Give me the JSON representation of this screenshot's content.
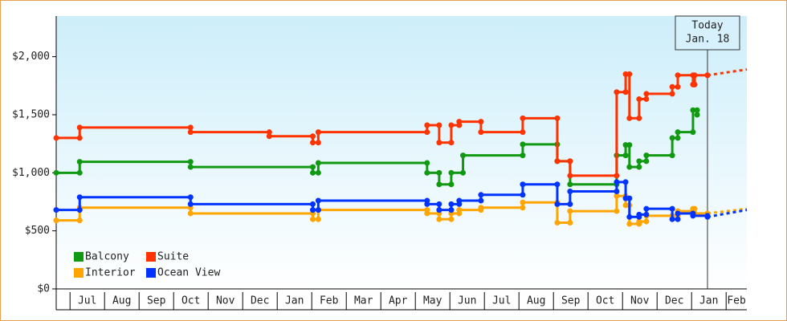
{
  "chart_data": {
    "type": "step-line",
    "xlim": [
      -0.4,
      19.6
    ],
    "xticks": [
      {
        "value": 0.5,
        "label": "Jul"
      },
      {
        "value": 1.5,
        "label": "Aug"
      },
      {
        "value": 2.5,
        "label": "Sep"
      },
      {
        "value": 3.5,
        "label": "Oct"
      },
      {
        "value": 4.5,
        "label": "Nov"
      },
      {
        "value": 5.5,
        "label": "Dec"
      },
      {
        "value": 6.5,
        "label": "Jan"
      },
      {
        "value": 7.5,
        "label": "Feb"
      },
      {
        "value": 8.5,
        "label": "Mar"
      },
      {
        "value": 9.5,
        "label": "Apr"
      },
      {
        "value": 10.5,
        "label": "May"
      },
      {
        "value": 11.5,
        "label": "Jun"
      },
      {
        "value": 12.5,
        "label": "Jul"
      },
      {
        "value": 13.5,
        "label": "Aug"
      },
      {
        "value": 14.5,
        "label": "Sep"
      },
      {
        "value": 15.5,
        "label": "Oct"
      },
      {
        "value": 16.5,
        "label": "Nov"
      },
      {
        "value": 17.5,
        "label": "Dec"
      },
      {
        "value": 18.5,
        "label": "Jan"
      },
      {
        "value": 19.5,
        "label": "Feb"
      }
    ],
    "ylim": [
      0,
      2350
    ],
    "yticks": [
      {
        "value": 0,
        "label": "$0"
      },
      {
        "value": 500,
        "label": "$500"
      },
      {
        "value": 1000,
        "label": "$1,000"
      },
      {
        "value": 1500,
        "label": "$1,500"
      },
      {
        "value": 2000,
        "label": "$2,000"
      }
    ],
    "annotation": {
      "x": 18.46,
      "lines": [
        "Today",
        "Jan. 18"
      ]
    },
    "forecast_x": [
      18.46,
      19.6
    ],
    "series": [
      {
        "name": "Balcony",
        "color": "#119911",
        "x": [
          -0.4,
          0.28,
          3.49,
          7.03,
          7.19,
          10.34,
          10.69,
          11.04,
          11.38,
          13.11,
          14.11,
          14.48,
          15.83,
          16.09,
          16.2,
          16.48,
          16.69,
          17.44,
          17.6,
          18.04,
          18.16
        ],
        "values": [
          1000,
          1095,
          1050,
          1000,
          1085,
          1000,
          900,
          1000,
          1150,
          1245,
          1100,
          900,
          1150,
          1240,
          1050,
          1100,
          1150,
          1300,
          1350,
          1540,
          1500
        ]
      },
      {
        "name": "Suite",
        "color": "#ff3300",
        "x": [
          -0.4,
          0.28,
          3.49,
          5.77,
          7.03,
          7.19,
          10.34,
          10.69,
          11.04,
          11.27,
          11.9,
          13.11,
          14.11,
          14.48,
          15.83,
          16.09,
          16.2,
          16.48,
          16.69,
          17.44,
          17.6,
          18.04,
          18.09,
          18.46
        ],
        "values": [
          1300,
          1390,
          1350,
          1315,
          1260,
          1350,
          1410,
          1260,
          1410,
          1440,
          1350,
          1470,
          1100,
          975,
          1695,
          1850,
          1470,
          1635,
          1680,
          1740,
          1840,
          1760,
          1840,
          1840
        ],
        "forecast": [
          1840,
          1890
        ]
      },
      {
        "name": "Interior",
        "color": "#ffa500",
        "x": [
          -0.4,
          0.28,
          3.49,
          7.03,
          7.19,
          10.34,
          10.69,
          11.04,
          11.27,
          11.9,
          13.11,
          14.11,
          14.48,
          15.83,
          16.09,
          16.2,
          16.48,
          16.69,
          17.44,
          17.6,
          18.04,
          18.09,
          18.46
        ],
        "values": [
          590,
          700,
          650,
          600,
          680,
          650,
          600,
          650,
          680,
          700,
          745,
          570,
          670,
          800,
          720,
          560,
          580,
          630,
          630,
          670,
          690,
          650,
          650
        ],
        "forecast": [
          650,
          690
        ]
      },
      {
        "name": "Ocean View",
        "color": "#0033ff",
        "x": [
          -0.4,
          0.28,
          3.49,
          7.03,
          7.19,
          10.34,
          10.69,
          11.04,
          11.27,
          11.9,
          13.11,
          14.11,
          14.48,
          15.83,
          16.09,
          16.2,
          16.48,
          16.69,
          17.44,
          17.6,
          18.04,
          18.46
        ],
        "values": [
          680,
          790,
          730,
          680,
          760,
          730,
          680,
          730,
          760,
          810,
          900,
          730,
          840,
          920,
          780,
          620,
          640,
          690,
          600,
          650,
          630,
          620
        ],
        "forecast": [
          620,
          680
        ]
      }
    ]
  }
}
